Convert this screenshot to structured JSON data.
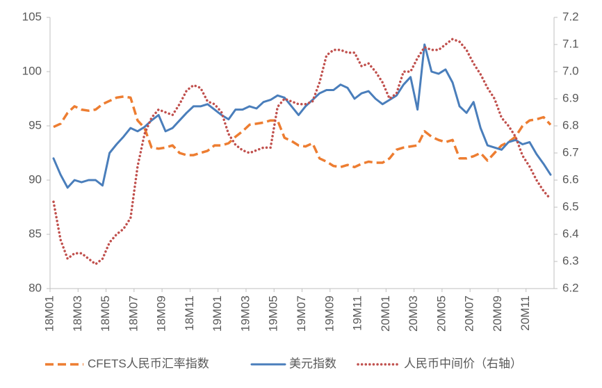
{
  "chart_data": {
    "type": "line",
    "categories": [
      "18M01",
      null,
      null,
      null,
      "18M03",
      null,
      null,
      null,
      "18M05",
      null,
      null,
      null,
      "18M07",
      null,
      null,
      null,
      "18M09",
      null,
      null,
      null,
      "18M11",
      null,
      null,
      null,
      "19M01",
      null,
      null,
      null,
      "19M03",
      null,
      null,
      null,
      "19M05",
      null,
      null,
      null,
      "19M07",
      null,
      null,
      null,
      "19M09",
      null,
      null,
      null,
      "19M11",
      null,
      null,
      null,
      "20M01",
      null,
      null,
      null,
      "20M03",
      null,
      null,
      null,
      "20M05",
      null,
      null,
      null,
      "20M07",
      null,
      null,
      null,
      "20M09",
      null,
      null,
      null,
      "20M11",
      null,
      null,
      null
    ],
    "series": [
      {
        "name": "CFETS人民币汇率指数",
        "color": "#ed7d31",
        "dash": "dashed",
        "values": [
          94.9,
          95.2,
          96.2,
          96.8,
          96.5,
          96.4,
          96.5,
          97.0,
          97.3,
          97.6,
          97.7,
          97.6,
          95.5,
          94.8,
          93.0,
          92.9,
          93.0,
          93.2,
          92.5,
          92.3,
          92.3,
          92.5,
          92.7,
          93.2,
          93.2,
          93.4,
          94.0,
          94.5,
          95.1,
          95.2,
          95.3,
          95.5,
          95.5,
          93.9,
          93.6,
          93.2,
          93.1,
          93.4,
          92.0,
          91.7,
          91.3,
          91.2,
          91.4,
          91.2,
          91.5,
          91.7,
          91.6,
          91.6,
          92.0,
          92.8,
          93.0,
          93.1,
          93.2,
          94.5,
          94.0,
          93.7,
          93.5,
          93.7,
          92.0,
          92.0,
          92.2,
          92.5,
          91.8,
          92.5,
          93.2,
          93.5,
          94.0,
          95.0,
          95.5,
          95.6,
          95.8,
          95.1
        ]
      },
      {
        "name": "美元指数",
        "color": "#4a7ebb",
        "dash": "solid",
        "values": [
          92.0,
          90.5,
          89.3,
          90.0,
          89.8,
          90.0,
          90.0,
          89.5,
          92.5,
          93.3,
          94.0,
          94.8,
          94.5,
          94.9,
          95.5,
          96.0,
          94.5,
          94.8,
          95.5,
          96.2,
          96.8,
          96.8,
          97.0,
          96.5,
          96.0,
          95.6,
          96.5,
          96.5,
          96.8,
          96.6,
          97.2,
          97.4,
          97.8,
          97.6,
          96.8,
          96.0,
          96.8,
          97.4,
          98.0,
          98.3,
          98.3,
          98.8,
          98.5,
          97.5,
          98.0,
          98.2,
          97.5,
          97.0,
          97.4,
          97.8,
          98.8,
          99.5,
          96.5,
          102.5,
          100.0,
          99.8,
          100.2,
          99.0,
          96.8,
          96.2,
          97.2,
          94.8,
          93.2,
          93.0,
          92.8,
          93.5,
          93.7,
          93.3,
          93.5,
          92.4,
          91.5,
          90.5
        ]
      },
      {
        "name": "人民币中间价（右轴）",
        "color": "#c0504d",
        "dash": "dotted",
        "axis": "y2",
        "values": [
          6.52,
          6.38,
          6.31,
          6.33,
          6.33,
          6.31,
          6.29,
          6.31,
          6.37,
          6.4,
          6.42,
          6.46,
          6.65,
          6.77,
          6.83,
          6.86,
          6.85,
          6.84,
          6.88,
          6.93,
          6.95,
          6.94,
          6.89,
          6.88,
          6.85,
          6.77,
          6.73,
          6.71,
          6.7,
          6.71,
          6.72,
          6.72,
          6.87,
          6.9,
          6.89,
          6.88,
          6.88,
          6.89,
          6.96,
          7.06,
          7.08,
          7.08,
          7.07,
          7.07,
          7.02,
          7.03,
          7.0,
          6.96,
          6.9,
          6.92,
          7.0,
          7.0,
          7.05,
          7.09,
          7.08,
          7.08,
          7.1,
          7.12,
          7.11,
          7.08,
          7.03,
          6.99,
          6.94,
          6.9,
          6.83,
          6.8,
          6.76,
          6.69,
          6.65,
          6.6,
          6.56,
          6.53
        ]
      }
    ],
    "ylim": [
      80,
      105
    ],
    "yticks": [
      80,
      85,
      90,
      95,
      100,
      105
    ],
    "y2lim": [
      6.2,
      7.2
    ],
    "y2ticks": [
      6.2,
      6.3,
      6.4,
      6.5,
      6.6,
      6.7,
      6.8,
      6.9,
      {
        "value": 7,
        "label": "7.0"
      },
      7.1,
      7.2
    ],
    "legend": "bottom"
  }
}
